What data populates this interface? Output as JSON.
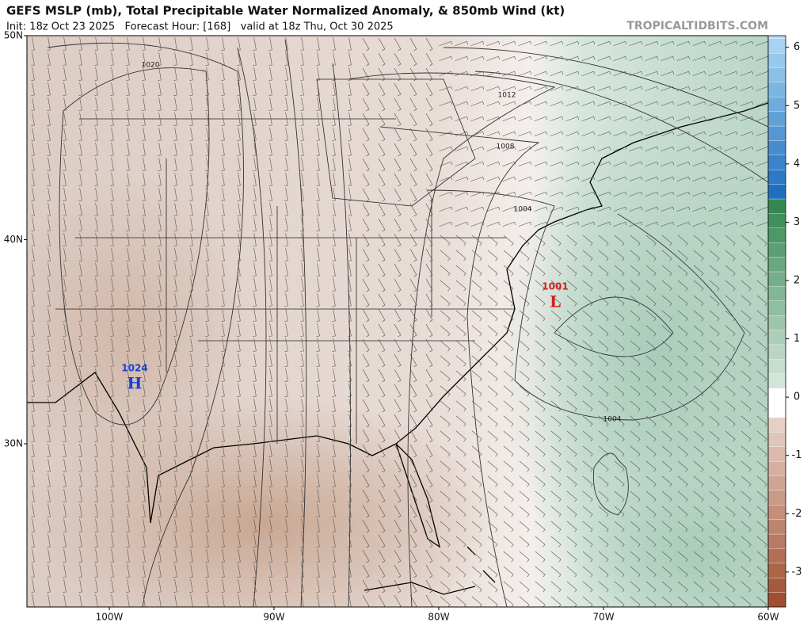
{
  "header": {
    "title": "GEFS MSLP (mb), Total Precipitable Water Normalized Anomaly, & 850mb Wind (kt)",
    "subtitle": "Init: 18z Oct 23 2025   Forecast Hour: [168]   valid at 18z Thu, Oct 30 2025",
    "brand": "TROPICALTIDBITS.COM"
  },
  "map": {
    "lon_lim": [
      -105,
      -60
    ],
    "lat_lim": [
      22,
      50
    ],
    "lat_ticks": [
      {
        "value": 50,
        "label": "50N"
      },
      {
        "value": 40,
        "label": "40N"
      },
      {
        "value": 30,
        "label": "30N"
      }
    ],
    "lon_ticks": [
      {
        "value": -100,
        "label": "100W"
      },
      {
        "value": -90,
        "label": "90W"
      },
      {
        "value": -80,
        "label": "80W"
      },
      {
        "value": -70,
        "label": "70W"
      },
      {
        "value": -60,
        "label": "60W"
      }
    ],
    "isobar_labels": [
      "1020",
      "1012",
      "1008",
      "1004",
      "1004"
    ],
    "centers": [
      {
        "value": "1001",
        "symbol": "L"
      },
      {
        "value": "1024",
        "symbol": "H"
      }
    ]
  },
  "colorbar": {
    "lim": [
      -3.6,
      6.2
    ],
    "ticks": [
      6,
      5,
      4,
      3,
      2,
      1,
      0,
      -1,
      -2,
      -3
    ]
  }
}
